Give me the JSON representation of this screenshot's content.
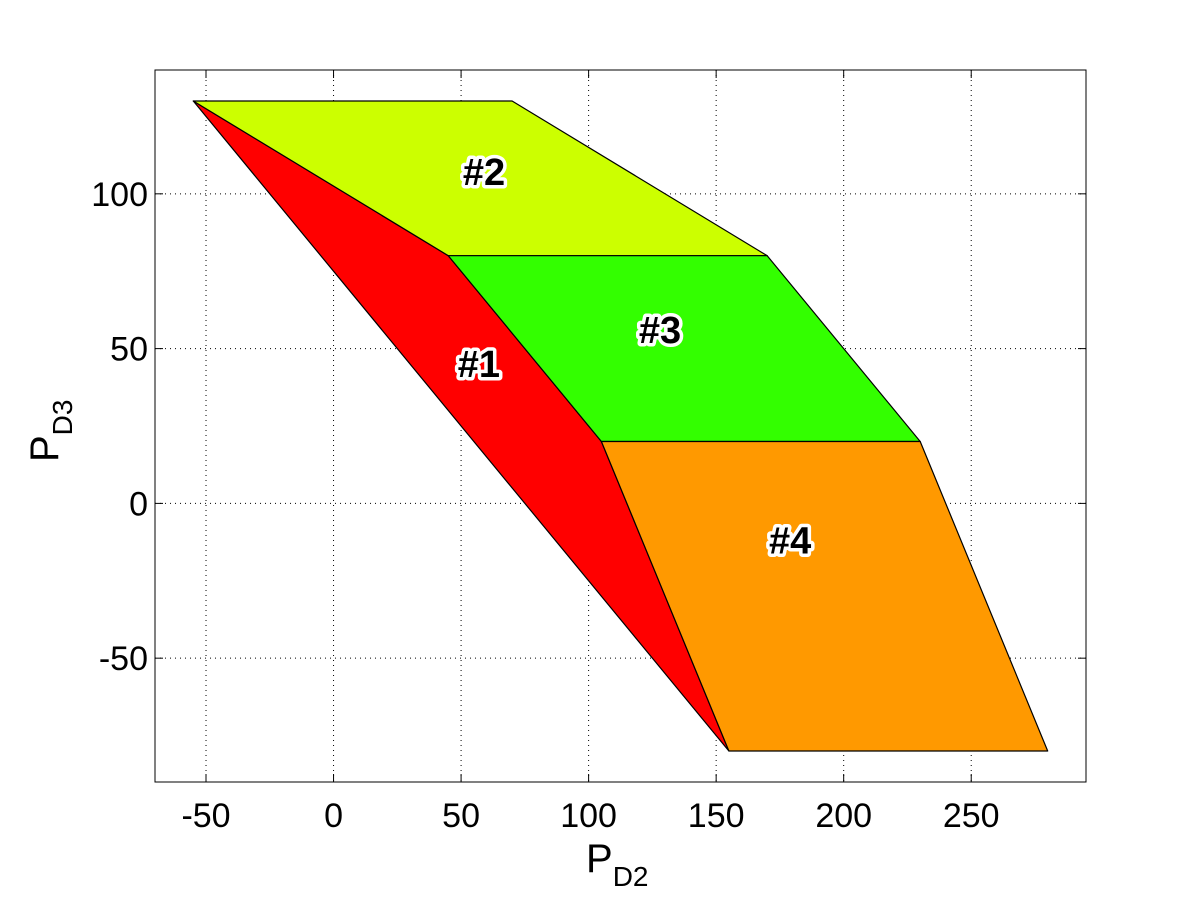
{
  "chart_data": {
    "type": "area",
    "xlabel": {
      "main": "P",
      "sub": "D2"
    },
    "ylabel": {
      "main": "P",
      "sub": "D3"
    },
    "xlim": [
      -70,
      295
    ],
    "ylim": [
      -90,
      140
    ],
    "xticks": [
      -50,
      0,
      50,
      100,
      150,
      200,
      250
    ],
    "yticks": [
      -50,
      0,
      50,
      100
    ],
    "grid": true,
    "regions": [
      {
        "label": "#1",
        "color": "#ff0000",
        "vertices": [
          [
            -55,
            130
          ],
          [
            45,
            80
          ],
          [
            105,
            20
          ],
          [
            155,
            -80
          ]
        ],
        "label_pos": [
          57,
          45
        ]
      },
      {
        "label": "#2",
        "color": "#ccff00",
        "vertices": [
          [
            -55,
            130
          ],
          [
            70,
            130
          ],
          [
            170,
            80
          ],
          [
            45,
            80
          ]
        ],
        "label_pos": [
          59,
          107
        ]
      },
      {
        "label": "#3",
        "color": "#33ff00",
        "vertices": [
          [
            45,
            80
          ],
          [
            170,
            80
          ],
          [
            230,
            20
          ],
          [
            105,
            20
          ]
        ],
        "label_pos": [
          128,
          56
        ]
      },
      {
        "label": "#4",
        "color": "#ff9900",
        "vertices": [
          [
            105,
            20
          ],
          [
            230,
            20
          ],
          [
            280,
            -80
          ],
          [
            155,
            -80
          ]
        ],
        "label_pos": [
          179,
          -12
        ]
      }
    ]
  }
}
